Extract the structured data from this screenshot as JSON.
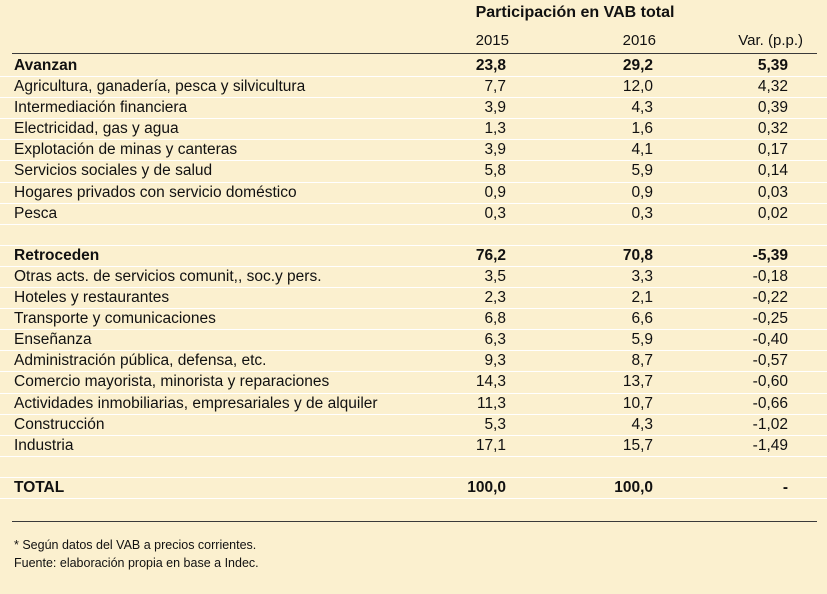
{
  "header": {
    "title": "Participación en VAB total",
    "col_2015": "2015",
    "col_2016": "2016",
    "col_var": "Var. (p.p.)"
  },
  "rows": [
    {
      "type": "group",
      "label": "Avanzan",
      "v2015": "23,8",
      "v2016": "29,2",
      "var": "5,39"
    },
    {
      "type": "item",
      "label": "Agricultura, ganadería, pesca y silvicultura",
      "v2015": "7,7",
      "v2016": "12,0",
      "var": "4,32"
    },
    {
      "type": "item",
      "label": "Intermediación financiera",
      "v2015": "3,9",
      "v2016": "4,3",
      "var": "0,39"
    },
    {
      "type": "item",
      "label": "Electricidad, gas y agua",
      "v2015": "1,3",
      "v2016": "1,6",
      "var": "0,32"
    },
    {
      "type": "item",
      "label": "Explotación de minas y canteras",
      "v2015": "3,9",
      "v2016": "4,1",
      "var": "0,17"
    },
    {
      "type": "item",
      "label": "Servicios sociales y de salud",
      "v2015": "5,8",
      "v2016": "5,9",
      "var": "0,14"
    },
    {
      "type": "item",
      "label": "Hogares privados con servicio doméstico",
      "v2015": "0,9",
      "v2016": "0,9",
      "var": "0,03"
    },
    {
      "type": "item",
      "label": "Pesca",
      "v2015": "0,3",
      "v2016": "0,3",
      "var": "0,02"
    },
    {
      "type": "blank",
      "label": "",
      "v2015": "",
      "v2016": "",
      "var": ""
    },
    {
      "type": "group",
      "label": "Retroceden",
      "v2015": "76,2",
      "v2016": "70,8",
      "var": "-5,39"
    },
    {
      "type": "item",
      "label": "Otras acts. de servicios comunit,, soc.y pers.",
      "v2015": "3,5",
      "v2016": "3,3",
      "var": "-0,18"
    },
    {
      "type": "item",
      "label": "Hoteles y restaurantes",
      "v2015": "2,3",
      "v2016": "2,1",
      "var": "-0,22"
    },
    {
      "type": "item",
      "label": "Transporte y comunicaciones",
      "v2015": "6,8",
      "v2016": "6,6",
      "var": "-0,25"
    },
    {
      "type": "item",
      "label": "Enseñanza",
      "v2015": "6,3",
      "v2016": "5,9",
      "var": "-0,40"
    },
    {
      "type": "item",
      "label": "Administración pública, defensa, etc.",
      "v2015": "9,3",
      "v2016": "8,7",
      "var": "-0,57"
    },
    {
      "type": "item",
      "label": "Comercio mayorista, minorista y reparaciones",
      "v2015": "14,3",
      "v2016": "13,7",
      "var": "-0,60"
    },
    {
      "type": "item",
      "label": "Actividades inmobiliarias, empresariales y de alquiler",
      "v2015": "11,3",
      "v2016": "10,7",
      "var": "-0,66"
    },
    {
      "type": "item",
      "label": "Construcción",
      "v2015": "5,3",
      "v2016": "4,3",
      "var": "-1,02"
    },
    {
      "type": "item",
      "label": "Industria",
      "v2015": "17,1",
      "v2016": "15,7",
      "var": "-1,49"
    },
    {
      "type": "blank",
      "label": "",
      "v2015": "",
      "v2016": "",
      "var": ""
    },
    {
      "type": "total",
      "label": "TOTAL",
      "v2015": "100,0",
      "v2016": "100,0",
      "var": "-"
    }
  ],
  "notes": {
    "line1": "* Según datos del VAB a precios corrientes.",
    "line2": "Fuente: elaboración propia en base a Indec."
  }
}
